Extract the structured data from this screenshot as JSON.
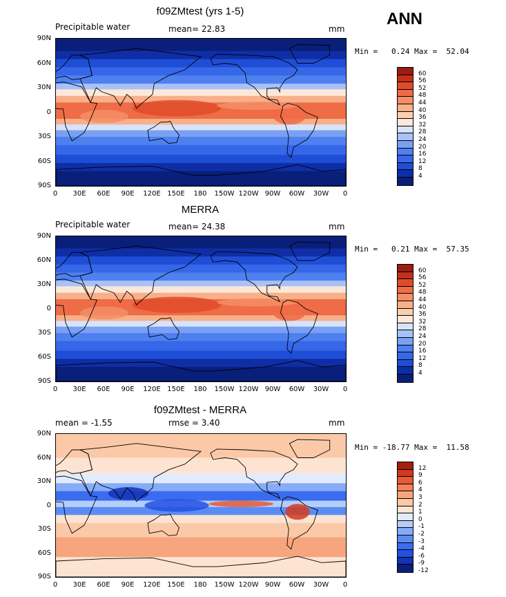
{
  "season": "ANN",
  "panels": [
    {
      "title": "f09ZMtest (yrs 1-5)",
      "left_label": "Precipitable water",
      "center_label": "mean=  22.83",
      "units": "mm",
      "minmax": "Min =   0.24 Max =  52.04",
      "colors": [
        "#f5f5f5",
        "#0a1f7a",
        "#0f2ea6",
        "#1f4ed6",
        "#3567e8",
        "#4f80f0",
        "#7aa0f4",
        "#a8c2f7",
        "#d6e3fb",
        "#fde8d7",
        "#fbcfae",
        "#f8b08a",
        "#f48e66",
        "#ee6c46",
        "#e14b2a",
        "#c4311a",
        "#9c1d10"
      ],
      "levels": [
        "4",
        "8",
        "12",
        "16",
        "20",
        "24",
        "28",
        "32",
        "36",
        "40",
        "44",
        "48",
        "52",
        "56",
        "60"
      ]
    },
    {
      "title": "MERRA",
      "left_label": "Precipitable water",
      "center_label": "mean=  24.38",
      "units": "mm",
      "minmax": "Min =   0.21 Max =  57.35",
      "colors": [
        "#f5f5f5",
        "#0a1f7a",
        "#0f2ea6",
        "#1f4ed6",
        "#3567e8",
        "#4f80f0",
        "#7aa0f4",
        "#a8c2f7",
        "#d6e3fb",
        "#fde8d7",
        "#fbcfae",
        "#f8b08a",
        "#f48e66",
        "#ee6c46",
        "#e14b2a",
        "#c4311a",
        "#9c1d10"
      ],
      "levels": [
        "4",
        "8",
        "12",
        "16",
        "20",
        "24",
        "28",
        "32",
        "36",
        "40",
        "44",
        "48",
        "52",
        "56",
        "60"
      ]
    },
    {
      "title": "f09ZMtest - MERRA",
      "left_label": "mean =   -1.55",
      "center_label": "rmse =    3.40",
      "units": "mm",
      "minmax": "Min = -18.77 Max =  11.58",
      "colors": [
        "#0a1f7a",
        "#1432b4",
        "#2350e0",
        "#3a6cf0",
        "#5b8cf4",
        "#86acf7",
        "#b5cdfa",
        "#e1ebfd",
        "#fde4d2",
        "#fbc9a8",
        "#f7a57e",
        "#f28157",
        "#e85a33",
        "#d33a1c",
        "#a3200f"
      ],
      "levels": [
        "-12",
        "-9",
        "-6",
        "-4",
        "-3",
        "-2",
        "-1",
        "0",
        "1",
        "2",
        "3",
        "4",
        "6",
        "9",
        "12"
      ]
    }
  ],
  "axes": {
    "lat_ticks": [
      "90N",
      "60N",
      "30N",
      "0",
      "30S",
      "60S",
      "90S"
    ],
    "lon_ticks": [
      "0",
      "30E",
      "60E",
      "90E",
      "120E",
      "150E",
      "180",
      "150W",
      "120W",
      "90W",
      "60W",
      "30W",
      "0"
    ]
  }
}
